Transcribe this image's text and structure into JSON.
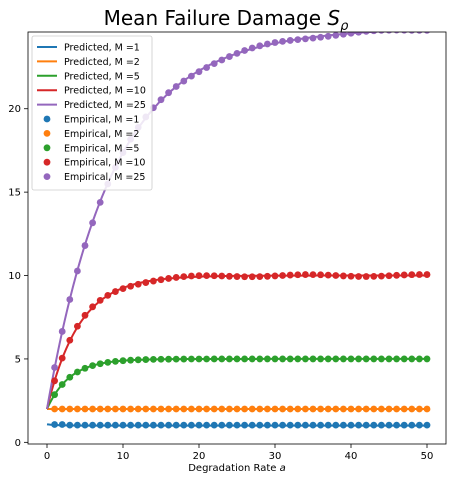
{
  "chart_data": {
    "type": "line",
    "title": "Mean Failure Damage",
    "title_symbol": "S",
    "title_subscript": "ρ",
    "xlabel": "Degradation Rate",
    "xlabel_symbol": "a",
    "ylabel": "",
    "xlim": [
      -2.5,
      52.5
    ],
    "ylim": [
      -0.1,
      24.6
    ],
    "xticks": [
      0,
      10,
      20,
      30,
      40,
      50
    ],
    "yticks": [
      0,
      5,
      10,
      15,
      20
    ],
    "legend_position": "top-left",
    "colors": {
      "M1": "#1f77b4",
      "M2": "#ff7f0e",
      "M5": "#2ca02c",
      "M10": "#d62728",
      "M25": "#9467bd"
    },
    "predicted": [
      {
        "name": "Predicted, M =1",
        "M": 1,
        "color": "#1f77b4"
      },
      {
        "name": "Predicted, M =2",
        "M": 2,
        "color": "#ff7f0e"
      },
      {
        "name": "Predicted, M =5",
        "M": 5,
        "color": "#2ca02c"
      },
      {
        "name": "Predicted, M =10",
        "M": 10,
        "color": "#d62728"
      },
      {
        "name": "Predicted, M =25",
        "M": 25,
        "color": "#9467bd"
      }
    ],
    "empirical": [
      {
        "name": "Empirical, M =1",
        "M": 1,
        "color": "#1f77b4"
      },
      {
        "name": "Empirical, M =2",
        "M": 2,
        "color": "#ff7f0e"
      },
      {
        "name": "Empirical, M =5",
        "M": 5,
        "color": "#2ca02c"
      },
      {
        "name": "Empirical, M =10",
        "M": 10,
        "color": "#d62728"
      },
      {
        "name": "Empirical, M =25",
        "M": 25,
        "color": "#9467bd"
      }
    ]
  }
}
